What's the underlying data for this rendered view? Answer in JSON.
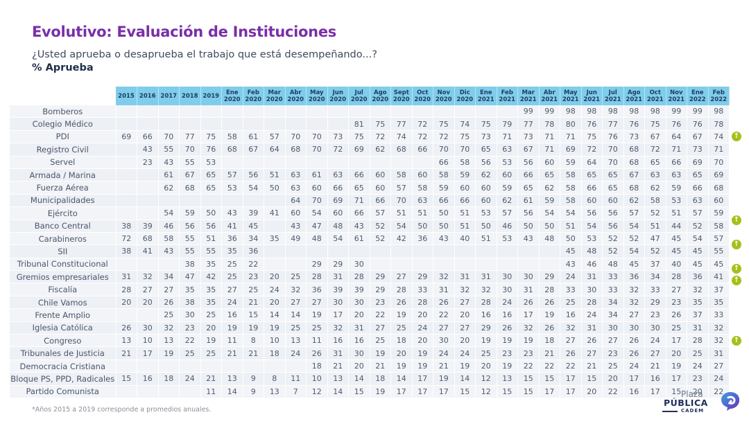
{
  "header": {
    "title": "Evolutivo: Evaluación de Instituciones",
    "question": "¿Usted aprueba o desaprueba el trabajo que está desempeñando...?",
    "metric": "% Aprueba"
  },
  "table": {
    "columns": [
      [
        "2015",
        ""
      ],
      [
        "2016",
        ""
      ],
      [
        "2017",
        ""
      ],
      [
        "2018",
        ""
      ],
      [
        "2019",
        ""
      ],
      [
        "Ene",
        "2020"
      ],
      [
        "Feb",
        "2020"
      ],
      [
        "Mar",
        "2020"
      ],
      [
        "Abr",
        "2020"
      ],
      [
        "May",
        "2020"
      ],
      [
        "Jun",
        "2020"
      ],
      [
        "Jul",
        "2020"
      ],
      [
        "Ago",
        "2020"
      ],
      [
        "Sept",
        "2020"
      ],
      [
        "Oct",
        "2020"
      ],
      [
        "Nov",
        "2020"
      ],
      [
        "Dic",
        "2020"
      ],
      [
        "Ene",
        "2021"
      ],
      [
        "Feb",
        "2021"
      ],
      [
        "Mar",
        "2021"
      ],
      [
        "Abr",
        "2021"
      ],
      [
        "May",
        "2021"
      ],
      [
        "Jun",
        "2021"
      ],
      [
        "Jul",
        "2021"
      ],
      [
        "Ago",
        "2021"
      ],
      [
        "Oct",
        "2021"
      ],
      [
        "Nov",
        "2021"
      ],
      [
        "Ene",
        "2022"
      ],
      [
        "Feb",
        "2022"
      ]
    ],
    "rows": [
      {
        "name": "Bomberos",
        "trend_up": false,
        "values": [
          null,
          null,
          null,
          null,
          null,
          null,
          null,
          null,
          null,
          null,
          null,
          null,
          null,
          null,
          null,
          null,
          null,
          null,
          null,
          99,
          99,
          98,
          98,
          98,
          98,
          98,
          99,
          99,
          98
        ]
      },
      {
        "name": "Colegio Médico",
        "trend_up": false,
        "values": [
          null,
          null,
          null,
          null,
          null,
          null,
          null,
          null,
          null,
          null,
          null,
          81,
          75,
          77,
          72,
          75,
          74,
          75,
          79,
          77,
          78,
          80,
          76,
          77,
          76,
          75,
          76,
          76,
          78
        ]
      },
      {
        "name": "PDI",
        "trend_up": true,
        "values": [
          69,
          66,
          70,
          77,
          75,
          58,
          61,
          57,
          70,
          70,
          73,
          75,
          72,
          74,
          72,
          72,
          75,
          73,
          71,
          73,
          71,
          71,
          75,
          76,
          73,
          67,
          64,
          67,
          74
        ]
      },
      {
        "name": "Registro Civil",
        "trend_up": false,
        "values": [
          null,
          43,
          55,
          70,
          76,
          68,
          67,
          64,
          68,
          70,
          72,
          69,
          62,
          68,
          66,
          70,
          70,
          65,
          63,
          67,
          71,
          69,
          72,
          70,
          68,
          72,
          71,
          73,
          71
        ]
      },
      {
        "name": "Servel",
        "trend_up": false,
        "values": [
          null,
          23,
          43,
          55,
          53,
          null,
          null,
          null,
          null,
          null,
          null,
          null,
          null,
          null,
          null,
          66,
          58,
          56,
          53,
          56,
          60,
          59,
          64,
          70,
          68,
          65,
          66,
          69,
          70
        ]
      },
      {
        "name": "Armada / Marina",
        "trend_up": false,
        "values": [
          null,
          null,
          61,
          67,
          65,
          57,
          56,
          51,
          63,
          61,
          63,
          66,
          60,
          58,
          60,
          58,
          59,
          62,
          60,
          66,
          65,
          58,
          65,
          65,
          67,
          63,
          63,
          65,
          69
        ]
      },
      {
        "name": "Fuerza Aérea",
        "trend_up": false,
        "values": [
          null,
          null,
          62,
          68,
          65,
          53,
          54,
          50,
          63,
          60,
          66,
          65,
          60,
          57,
          58,
          59,
          60,
          60,
          59,
          65,
          62,
          58,
          66,
          65,
          68,
          62,
          59,
          66,
          68
        ]
      },
      {
        "name": "Municipalidades",
        "trend_up": false,
        "values": [
          null,
          null,
          null,
          null,
          null,
          null,
          null,
          null,
          64,
          70,
          69,
          71,
          66,
          70,
          63,
          66,
          66,
          60,
          62,
          61,
          59,
          58,
          60,
          60,
          62,
          58,
          53,
          63,
          60
        ]
      },
      {
        "name": "Ejército",
        "trend_up": false,
        "values": [
          null,
          null,
          54,
          59,
          50,
          43,
          39,
          41,
          60,
          54,
          60,
          66,
          57,
          51,
          51,
          50,
          51,
          53,
          57,
          56,
          54,
          54,
          56,
          56,
          57,
          52,
          51,
          57,
          59
        ]
      },
      {
        "name": "Banco Central",
        "trend_up": true,
        "values": [
          38,
          39,
          46,
          56,
          56,
          41,
          45,
          null,
          43,
          47,
          48,
          43,
          52,
          54,
          50,
          50,
          51,
          50,
          46,
          50,
          50,
          51,
          54,
          56,
          54,
          51,
          44,
          52,
          58
        ]
      },
      {
        "name": "Carabineros",
        "trend_up": false,
        "values": [
          72,
          68,
          58,
          55,
          51,
          36,
          34,
          35,
          49,
          48,
          54,
          61,
          52,
          42,
          36,
          43,
          40,
          51,
          53,
          43,
          48,
          50,
          53,
          52,
          52,
          47,
          45,
          54,
          57
        ]
      },
      {
        "name": "SII",
        "trend_up": true,
        "values": [
          38,
          41,
          43,
          55,
          55,
          35,
          36,
          null,
          null,
          null,
          null,
          null,
          null,
          null,
          null,
          null,
          null,
          null,
          null,
          null,
          null,
          45,
          48,
          52,
          54,
          52,
          45,
          45,
          55
        ]
      },
      {
        "name": "Tribunal Constitucional",
        "trend_up": false,
        "values": [
          null,
          null,
          null,
          38,
          35,
          25,
          22,
          null,
          null,
          29,
          29,
          30,
          null,
          null,
          null,
          null,
          null,
          null,
          null,
          null,
          null,
          43,
          46,
          48,
          45,
          37,
          40,
          45,
          45
        ]
      },
      {
        "name": "Gremios empresariales",
        "trend_up": true,
        "values": [
          31,
          32,
          34,
          47,
          42,
          25,
          23,
          20,
          25,
          28,
          31,
          28,
          29,
          27,
          29,
          32,
          31,
          31,
          30,
          30,
          29,
          24,
          31,
          33,
          36,
          34,
          28,
          36,
          41
        ]
      },
      {
        "name": "Fiscalía",
        "trend_up": true,
        "values": [
          28,
          27,
          27,
          35,
          35,
          27,
          25,
          24,
          32,
          36,
          39,
          39,
          29,
          28,
          33,
          31,
          32,
          32,
          30,
          31,
          28,
          33,
          30,
          33,
          32,
          33,
          27,
          32,
          37
        ]
      },
      {
        "name": "Chile Vamos",
        "trend_up": false,
        "values": [
          20,
          20,
          26,
          38,
          35,
          24,
          21,
          20,
          27,
          27,
          30,
          30,
          23,
          26,
          28,
          26,
          27,
          28,
          24,
          26,
          26,
          25,
          28,
          34,
          32,
          29,
          23,
          35,
          35
        ]
      },
      {
        "name": "Frente Amplio",
        "trend_up": false,
        "values": [
          null,
          null,
          25,
          30,
          25,
          16,
          15,
          14,
          14,
          19,
          17,
          20,
          22,
          19,
          20,
          22,
          20,
          16,
          16,
          17,
          19,
          16,
          24,
          34,
          27,
          23,
          26,
          37,
          33
        ]
      },
      {
        "name": "Iglesia Católica",
        "trend_up": false,
        "values": [
          26,
          30,
          32,
          23,
          20,
          19,
          19,
          19,
          25,
          25,
          32,
          31,
          27,
          25,
          24,
          27,
          27,
          29,
          26,
          32,
          26,
          32,
          31,
          30,
          30,
          30,
          25,
          31,
          32
        ]
      },
      {
        "name": "Congreso",
        "trend_up": false,
        "values": [
          13,
          10,
          13,
          22,
          19,
          11,
          8,
          10,
          13,
          11,
          16,
          16,
          25,
          18,
          20,
          30,
          20,
          19,
          19,
          19,
          18,
          27,
          26,
          27,
          26,
          24,
          17,
          28,
          32
        ]
      },
      {
        "name": "Tribunales de Justicia",
        "trend_up": true,
        "values": [
          21,
          17,
          19,
          25,
          25,
          21,
          21,
          18,
          24,
          26,
          31,
          30,
          19,
          20,
          19,
          24,
          24,
          25,
          23,
          23,
          21,
          26,
          27,
          23,
          26,
          27,
          20,
          25,
          31
        ]
      },
      {
        "name": "Democracia Cristiana",
        "trend_up": false,
        "values": [
          null,
          null,
          null,
          null,
          null,
          null,
          null,
          null,
          null,
          18,
          21,
          20,
          21,
          19,
          19,
          21,
          19,
          20,
          19,
          22,
          22,
          22,
          21,
          25,
          24,
          21,
          19,
          24,
          27
        ]
      },
      {
        "name": "Bloque PS, PPD, Radicales",
        "trend_up": false,
        "values": [
          15,
          16,
          18,
          24,
          21,
          13,
          9,
          8,
          11,
          10,
          13,
          14,
          18,
          14,
          17,
          19,
          14,
          12,
          13,
          15,
          15,
          17,
          15,
          20,
          17,
          16,
          17,
          23,
          24
        ]
      },
      {
        "name": "Partido Comunista",
        "trend_up": false,
        "values": [
          null,
          null,
          null,
          null,
          11,
          14,
          9,
          13,
          7,
          12,
          14,
          15,
          19,
          17,
          17,
          17,
          15,
          12,
          15,
          15,
          17,
          17,
          20,
          22,
          16,
          17,
          15,
          20,
          22
        ]
      }
    ],
    "trend_icon": "arrow-up-circle-icon",
    "colors": {
      "header_bg": "#7fcdea",
      "trend_up": "#a8bf1b",
      "title": "#7a2fa8"
    }
  },
  "footer": {
    "note": "*Años 2015 a 2019 corresponde a promedios anuales.",
    "logo": {
      "line1": "Plaza",
      "line2": "PÚBLICA",
      "line3": "CADEM"
    }
  }
}
